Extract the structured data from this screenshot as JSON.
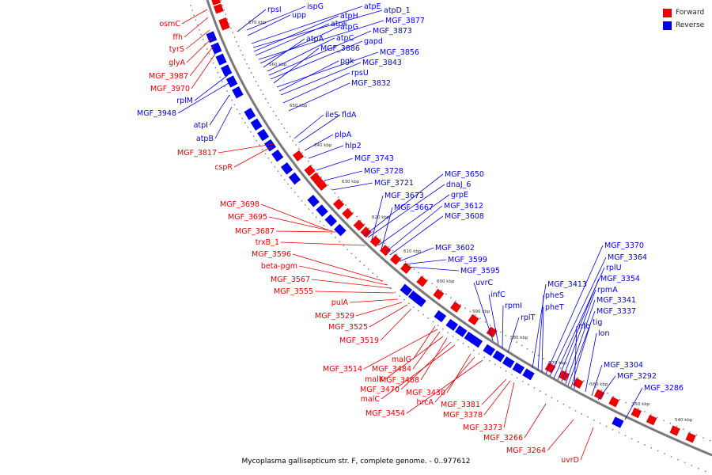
{
  "legend": {
    "forward_label": "Forward",
    "reverse_label": "Reverse",
    "forward_color": "#ee0000",
    "reverse_color": "#0000ee"
  },
  "caption": "Mycoplasma gallisepticum str. F, complete genome. - 0..977612",
  "ruler_labels": [
    "670 kbp",
    "660 kbp",
    "650 kbp",
    "640 kbp",
    "630 kbp",
    "620 kbp",
    "610 kbp",
    "600 kbp",
    "590 kbp",
    "580 kbp",
    "570 kbp",
    "560 kbp",
    "550 kbp",
    "540 kbp"
  ],
  "forward_genes": [
    "osmC",
    "ffh",
    "tyrS",
    "glyA",
    "MGF_3987",
    "MGF_3970",
    "MGF_3817",
    "cspR",
    "MGF_3698",
    "MGF_3695",
    "MGF_3687",
    "trxB_1",
    "MGF_3596",
    "beta-pgm",
    "MGF_3567",
    "MGF_3555",
    "pulA",
    "MGF_3529",
    "MGF_3525",
    "MGF_3519",
    "malG",
    "MGF_3514",
    "MGF_3484",
    "malK",
    "MGF_3468",
    "MGF_3470",
    "malC",
    "MGF_3430",
    "hrcA",
    "MGF_3454",
    "MGF_3381",
    "MGF_3378",
    "MGF_3373",
    "MGF_3266",
    "MGF_3264",
    "uvrD"
  ],
  "reverse_genes": [
    "rpsI",
    "ispG",
    "upp",
    "atpE",
    "atpD_1",
    "atpH",
    "atpF",
    "MGF_3877",
    "atpG",
    "atpA",
    "atpC",
    "MGF_3873",
    "gapd",
    "MGF_3886",
    "MGF_3856",
    "pgk",
    "MGF_3843",
    "rpsU",
    "MGF_3832",
    "rplM",
    "MGF_3948",
    "atpI",
    "atpB",
    "ileS",
    "fldA",
    "plpA",
    "hlp2",
    "MGF_3743",
    "MGF_3728",
    "MGF_3721",
    "MGF_3650",
    "dnaJ_6",
    "MGF_3673",
    "grpE",
    "MGF_3667",
    "MGF_3612",
    "MGF_3608",
    "MGF_3602",
    "MGF_3599",
    "MGF_3595",
    "uvrC",
    "infC",
    "rpmI",
    "rplT",
    "MGF_3413",
    "pheS",
    "pheT",
    "MGF_3370",
    "MGF_3364",
    "rplU",
    "MGF_3354",
    "rpmA",
    "MGF_3341",
    "MGF_3337",
    "tig",
    "nfo",
    "lon",
    "MGF_3304",
    "MGF_3292",
    "MGF_3286"
  ]
}
